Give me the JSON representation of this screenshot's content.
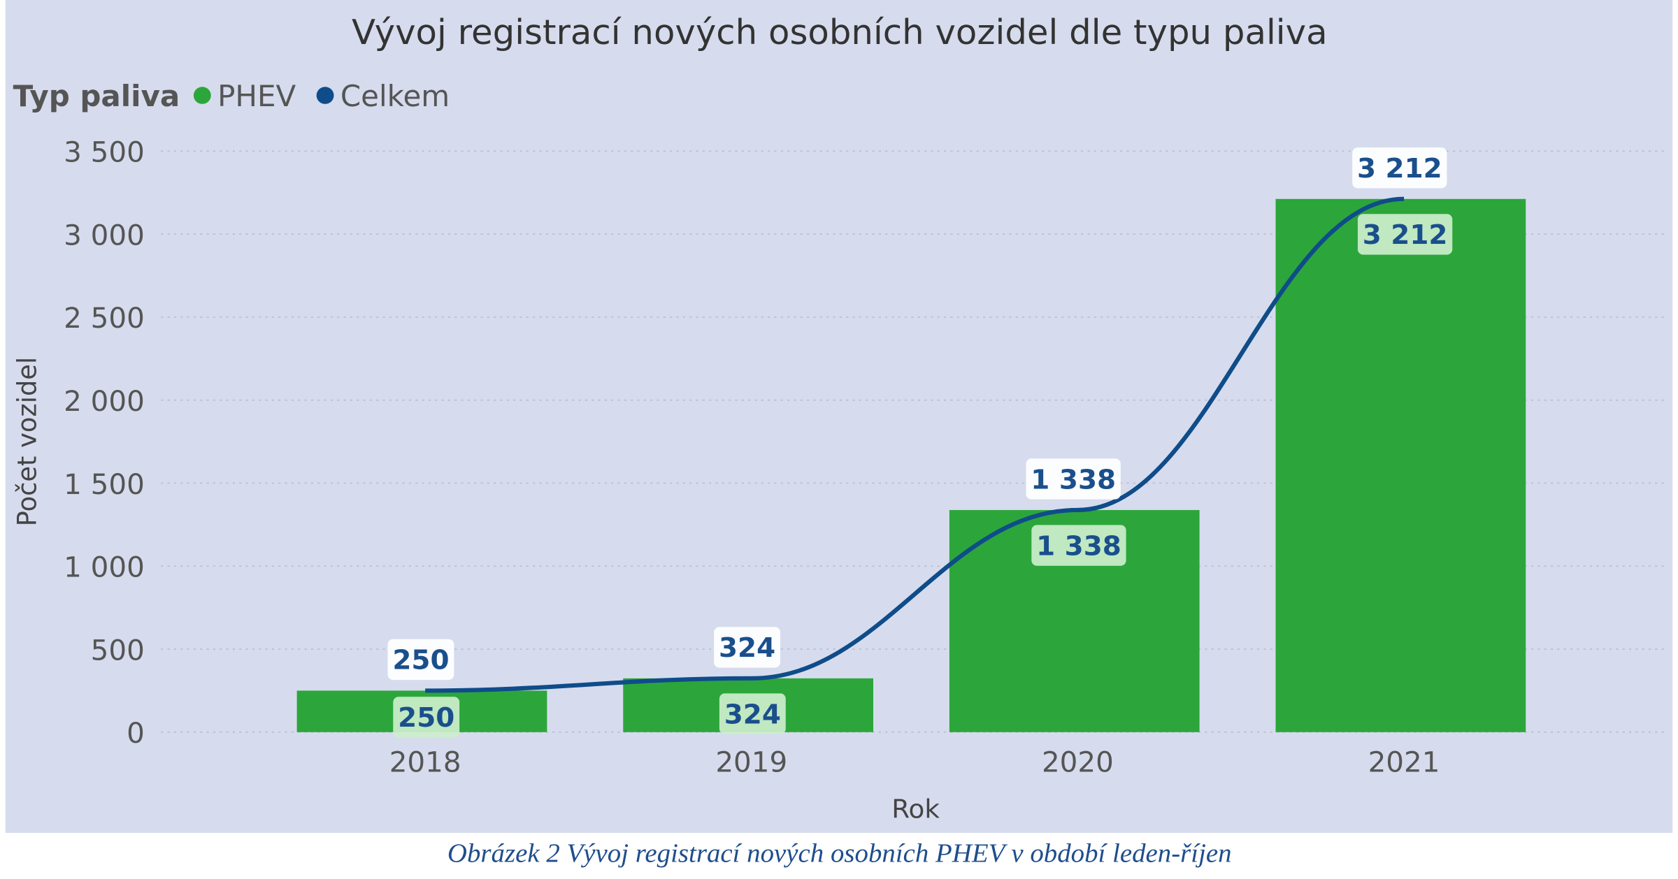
{
  "chart_data": {
    "type": "bar+line",
    "title": "Vývoj registrací nových osobních vozidel dle typu paliva",
    "legend": {
      "title": "Typ paliva",
      "placement": "top-left",
      "entries": [
        {
          "name": "PHEV",
          "color": "#2ca63a"
        },
        {
          "name": "Celkem",
          "color": "#0f4c8a"
        }
      ]
    },
    "xlabel": "Rok",
    "ylabel": "Počet vozidel",
    "categories": [
      "2018",
      "2019",
      "2020",
      "2021"
    ],
    "ylim": [
      0,
      3500
    ],
    "yticks": [
      0,
      500,
      1000,
      1500,
      2000,
      2500,
      3000,
      3500
    ],
    "ytick_labels": [
      "0",
      "500",
      "1 000",
      "1 500",
      "2 000",
      "2 500",
      "3 000",
      "3 500"
    ],
    "grid": "horizontal dotted",
    "series": [
      {
        "name": "PHEV",
        "type": "bar",
        "color": "#2ca63a",
        "values": [
          250,
          324,
          1338,
          3212
        ],
        "labels": [
          "250",
          "324",
          "1 338",
          "3 212"
        ]
      },
      {
        "name": "Celkem",
        "type": "line",
        "color": "#0f4c8a",
        "values": [
          250,
          324,
          1338,
          3212
        ],
        "labels": [
          "250",
          "324",
          "1 338",
          "3 212"
        ]
      }
    ],
    "background": "#d6dced"
  },
  "caption": "Obrázek 2 Vývoj registrací nových osobních PHEV v období leden-říjen"
}
